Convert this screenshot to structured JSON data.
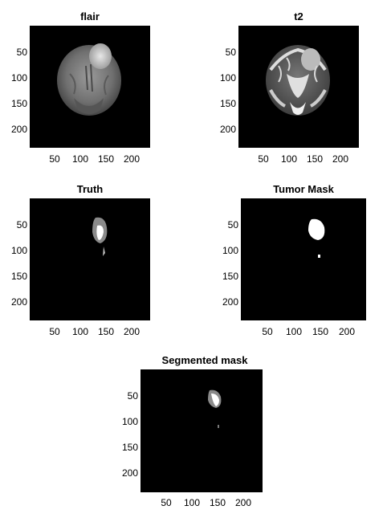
{
  "panels": [
    {
      "title": "flair"
    },
    {
      "title": "t2"
    },
    {
      "title": "Truth"
    },
    {
      "title": "Tumor Mask"
    },
    {
      "title": "Segmented mask"
    }
  ],
  "axes": {
    "x_ticks": [
      "50",
      "100",
      "150",
      "200"
    ],
    "y_ticks": [
      "50",
      "100",
      "150",
      "200"
    ]
  }
}
